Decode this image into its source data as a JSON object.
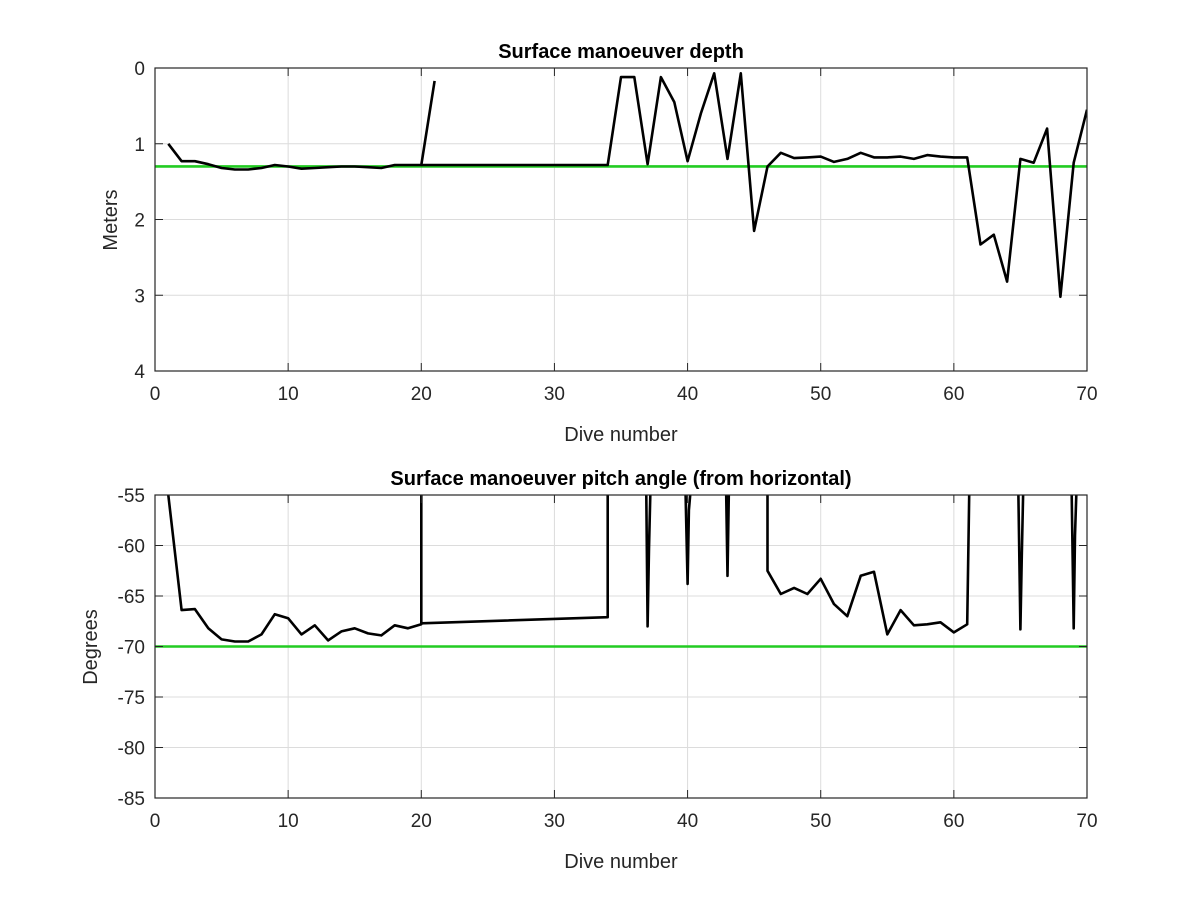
{
  "chart_data": [
    {
      "type": "line",
      "title": "Surface manoeuver depth",
      "xlabel": "Dive number",
      "ylabel": "Meters",
      "xlim": [
        0,
        70
      ],
      "ylim": [
        0,
        4
      ],
      "y_reversed": true,
      "xticks": [
        0,
        10,
        20,
        30,
        40,
        50,
        60,
        70
      ],
      "yticks": [
        0,
        1,
        2,
        3,
        4
      ],
      "grid": true,
      "series": [
        {
          "color": "#000000",
          "x": [
            1,
            2,
            3,
            4,
            5,
            6,
            7,
            8,
            9,
            10,
            11,
            12,
            13,
            14,
            15,
            16,
            17,
            18,
            19,
            20,
            21
          ],
          "y": [
            1.0,
            1.23,
            1.23,
            1.27,
            1.32,
            1.34,
            1.34,
            1.32,
            1.28,
            1.3,
            1.33,
            1.32,
            1.31,
            1.3,
            1.3,
            1.31,
            1.32,
            1.28,
            1.28,
            1.28,
            0.17
          ]
        },
        {
          "color": "#000000",
          "x": [
            20,
            34,
            35,
            36,
            37,
            38,
            39,
            40,
            41,
            42,
            43,
            44,
            45,
            46,
            47,
            48,
            49,
            50,
            51,
            52,
            53,
            54,
            55,
            56,
            57,
            58,
            59,
            60,
            61,
            62,
            63,
            64,
            65,
            66,
            67,
            68,
            69,
            70
          ],
          "y": [
            1.28,
            1.28,
            0.12,
            0.12,
            1.27,
            0.12,
            0.45,
            1.23,
            0.6,
            0.07,
            1.2,
            0.07,
            2.15,
            1.3,
            1.12,
            1.19,
            1.18,
            1.17,
            1.24,
            1.2,
            1.12,
            1.18,
            1.18,
            1.17,
            1.2,
            1.15,
            1.17,
            1.18,
            1.18,
            2.33,
            2.2,
            2.82,
            1.2,
            1.25,
            0.8,
            3.02,
            1.25,
            0.55
          ]
        }
      ],
      "reference_line": {
        "y": 1.3,
        "color": "#22cc22"
      }
    },
    {
      "type": "line",
      "title": "Surface manoeuver pitch angle (from horizontal)",
      "xlabel": "Dive number",
      "ylabel": "Degrees",
      "xlim": [
        0,
        70
      ],
      "ylim": [
        -85,
        -55
      ],
      "y_reversed": false,
      "xticks": [
        0,
        10,
        20,
        30,
        40,
        50,
        60,
        70
      ],
      "yticks": [
        -55,
        -60,
        -65,
        -70,
        -75,
        -80,
        -85
      ],
      "grid": true,
      "series": [
        {
          "color": "#000000",
          "x": [
            1,
            2,
            3,
            4,
            5,
            6,
            7,
            8,
            9,
            10,
            11,
            12,
            13,
            14,
            15,
            16,
            17,
            18,
            19,
            20,
            20,
            20,
            34,
            34,
            34
          ],
          "y": [
            -55,
            -66.4,
            -66.3,
            -68.2,
            -69.3,
            -69.5,
            -69.5,
            -68.8,
            -66.8,
            -67.2,
            -68.8,
            -67.9,
            -69.4,
            -68.5,
            -68.2,
            -68.7,
            -68.9,
            -67.9,
            -68.2,
            -67.8,
            -55,
            -67.7,
            -67.1,
            -67.1,
            -55
          ]
        },
        {
          "color": "#000000",
          "x": [
            36.9,
            37,
            37.1,
            37.2
          ],
          "y": [
            -55,
            -68.0,
            -60.3,
            -55
          ]
        },
        {
          "color": "#000000",
          "x": [
            39.85,
            40,
            40.1,
            40.2
          ],
          "y": [
            -55,
            -63.8,
            -56.5,
            -55
          ]
        },
        {
          "color": "#000000",
          "x": [
            42.9,
            43,
            43.1
          ],
          "y": [
            -55,
            -63.0,
            -55
          ]
        },
        {
          "color": "#000000",
          "x": [
            46,
            46,
            47,
            48,
            49,
            50,
            51,
            52,
            53,
            54,
            55,
            56,
            57,
            58,
            59,
            60,
            61,
            61.15
          ],
          "y": [
            -55,
            -62.5,
            -64.8,
            -64.2,
            -64.8,
            -63.3,
            -65.8,
            -67.0,
            -63.0,
            -62.6,
            -68.8,
            -66.4,
            -67.9,
            -67.8,
            -67.6,
            -68.6,
            -67.8,
            -55
          ]
        },
        {
          "color": "#000000",
          "x": [
            64.85,
            65,
            65.1,
            65.2
          ],
          "y": [
            -55,
            -68.3,
            -61.0,
            -55
          ]
        },
        {
          "color": "#000000",
          "x": [
            68.85,
            69,
            69.1,
            69.2
          ],
          "y": [
            -55,
            -68.2,
            -59.0,
            -55
          ]
        }
      ],
      "reference_line": {
        "y": -70,
        "color": "#22cc22"
      }
    }
  ]
}
